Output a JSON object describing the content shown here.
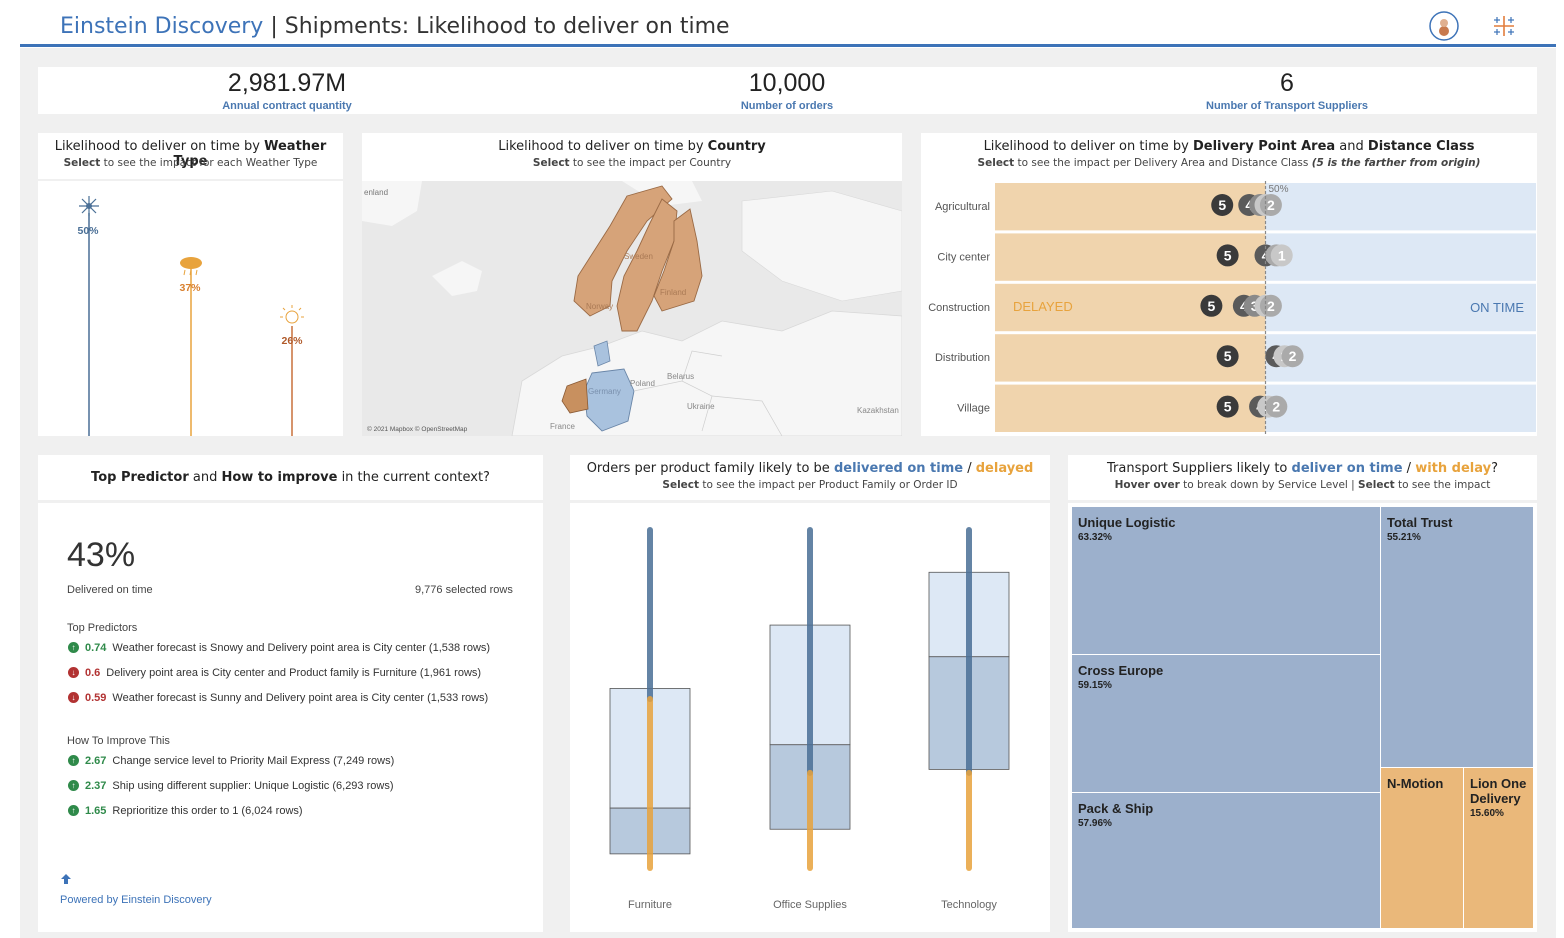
{
  "header": {
    "brand": "Einstein Discovery",
    "separator": "|",
    "title": "Shipments: Likelihood to deliver on time"
  },
  "kpis": [
    {
      "value": "2,981.97M",
      "label": "Annual contract quantity"
    },
    {
      "value": "10,000",
      "label": "Number of orders"
    },
    {
      "value": "6",
      "label": "Number of Transport Suppliers"
    }
  ],
  "weather": {
    "title_pre": "Likelihood to deliver on time by ",
    "title_bold": "Weather Type",
    "sub_bold": "Select",
    "sub_rest": " to see the impact for each Weather Type",
    "items": [
      {
        "icon": "snowflake-icon",
        "pct": "50%",
        "color": "#4a6f96"
      },
      {
        "icon": "rain-cloud-icon",
        "pct": "37%",
        "color": "#e8a33d"
      },
      {
        "icon": "sun-icon",
        "pct": "26%",
        "color": "#c8703a"
      }
    ]
  },
  "country": {
    "title_pre": "Likelihood to deliver on time by ",
    "title_bold": "Country",
    "sub_bold": "Select",
    "sub_rest": " to see the impact per Country",
    "map_labels": [
      "enland",
      "Sweden",
      "Finland",
      "Norway",
      "Poland",
      "Belarus",
      "Germany",
      "Ukraine",
      "Kazakhstan",
      "France"
    ],
    "attribution": "© 2021 Mapbox © OpenStreetMap"
  },
  "delivery": {
    "title_pre": "Likelihood to deliver on time by ",
    "title_b1": "Delivery Point Area",
    "title_mid": " and ",
    "title_b2": "Distance Class",
    "sub_bold": "Select",
    "sub_rest": " to see the impact per Delivery Area and Distance Class ",
    "sub_italic": "(5 is the farther from origin)",
    "ref_label": "50%",
    "delayed_label": "DELAYED",
    "ontime_label": "ON TIME",
    "rows": [
      {
        "area": "Agricultural",
        "points": [
          {
            "c": "5",
            "v": 0.42
          },
          {
            "c": "4",
            "v": 0.47
          },
          {
            "c": "3",
            "v": 0.49
          },
          {
            "c": "1",
            "v": 0.5
          },
          {
            "c": "2",
            "v": 0.51
          }
        ]
      },
      {
        "area": "City center",
        "points": [
          {
            "c": "5",
            "v": 0.43
          },
          {
            "c": "4",
            "v": 0.5
          },
          {
            "c": "2",
            "v": 0.52
          },
          {
            "c": "1",
            "v": 0.53
          }
        ]
      },
      {
        "area": "Construction",
        "points": [
          {
            "c": "5",
            "v": 0.4
          },
          {
            "c": "4",
            "v": 0.46
          },
          {
            "c": "3",
            "v": 0.48
          },
          {
            "c": "1",
            "v": 0.5
          },
          {
            "c": "2",
            "v": 0.51
          }
        ]
      },
      {
        "area": "Distribution",
        "points": [
          {
            "c": "5",
            "v": 0.43
          },
          {
            "c": "4",
            "v": 0.52
          },
          {
            "c": "1",
            "v": 0.535
          },
          {
            "c": "2",
            "v": 0.55
          }
        ]
      },
      {
        "area": "Village",
        "points": [
          {
            "c": "5",
            "v": 0.43
          },
          {
            "c": "4",
            "v": 0.49
          },
          {
            "c": "1",
            "v": 0.505
          },
          {
            "c": "2",
            "v": 0.52
          }
        ]
      }
    ]
  },
  "predictor": {
    "title_b1": "Top Predictor",
    "title_mid1": " and ",
    "title_b2": "How to improve",
    "title_rest": " in the current context?",
    "big_value": "43%",
    "big_label": "Delivered on time",
    "selected_rows": "9,776 selected rows",
    "top_header": "Top Predictors",
    "top": [
      {
        "dir": "up",
        "val": "0.74",
        "text": "Weather forecast is Snowy and Delivery point area is City center (1,538 rows)"
      },
      {
        "dir": "down",
        "val": "0.6",
        "text": "Delivery point area is City center and Product family is Furniture (1,961 rows)"
      },
      {
        "dir": "down",
        "val": "0.59",
        "text": "Weather forecast is Sunny and Delivery point area is City center (1,533 rows)"
      }
    ],
    "improve_header": "How To Improve This",
    "improve": [
      {
        "dir": "up",
        "val": "2.67",
        "text": "Change service level to Priority Mail Express (7,249 rows)"
      },
      {
        "dir": "up",
        "val": "2.37",
        "text": "Ship using different supplier: Unique Logistic (6,293 rows)"
      },
      {
        "dir": "up",
        "val": "1.65",
        "text": "Reprioritize this order to 1 (6,024 rows)"
      }
    ],
    "powered": "Powered by Einstein Discovery"
  },
  "orders": {
    "title_pre": "Orders per product family likely to be ",
    "title_blue": "delivered on time",
    "title_sep": " / ",
    "title_orange": "delayed",
    "sub_bold": "Select",
    "sub_rest": " to see the impact per Product Family or Order ID",
    "families": [
      {
        "name": "Furniture",
        "min": 0.02,
        "max": 0.98,
        "q1": 0.06,
        "median": 0.19,
        "q3": 0.53,
        "split": 0.5
      },
      {
        "name": "Office Supplies",
        "min": 0.02,
        "max": 0.98,
        "q1": 0.13,
        "median": 0.37,
        "q3": 0.71,
        "split": 0.29
      },
      {
        "name": "Technology",
        "min": 0.02,
        "max": 0.98,
        "q1": 0.3,
        "median": 0.62,
        "q3": 0.86,
        "split": 0.29
      }
    ]
  },
  "suppliers": {
    "title_pre": "Transport Suppliers likely to ",
    "title_blue": "deliver on time",
    "title_sep": " / ",
    "title_orange": "with delay",
    "title_end": "?",
    "sub_b1": "Hover over",
    "sub_mid": " to break down by Service Level | ",
    "sub_b2": "Select",
    "sub_rest": " to see the impact",
    "items": [
      {
        "name": "Unique Logistic",
        "pct": "63.32%",
        "status": "on_time"
      },
      {
        "name": "Total Trust",
        "pct": "55.21%",
        "status": "on_time"
      },
      {
        "name": "Cross Europe",
        "pct": "59.15%",
        "status": "on_time"
      },
      {
        "name": "Pack & Ship",
        "pct": "57.96%",
        "status": "on_time"
      },
      {
        "name": "N-Motion",
        "pct": "",
        "status": "delayed"
      },
      {
        "name": "Lion One Delivery",
        "pct": "15.60%",
        "status": "delayed"
      }
    ]
  },
  "colors": {
    "accent": "#3d73b8",
    "on_time": "#9cb0cc",
    "delayed": "#eab87a",
    "delayed_bg": "#f0d4ad",
    "ontime_bg": "#dde8f5"
  }
}
